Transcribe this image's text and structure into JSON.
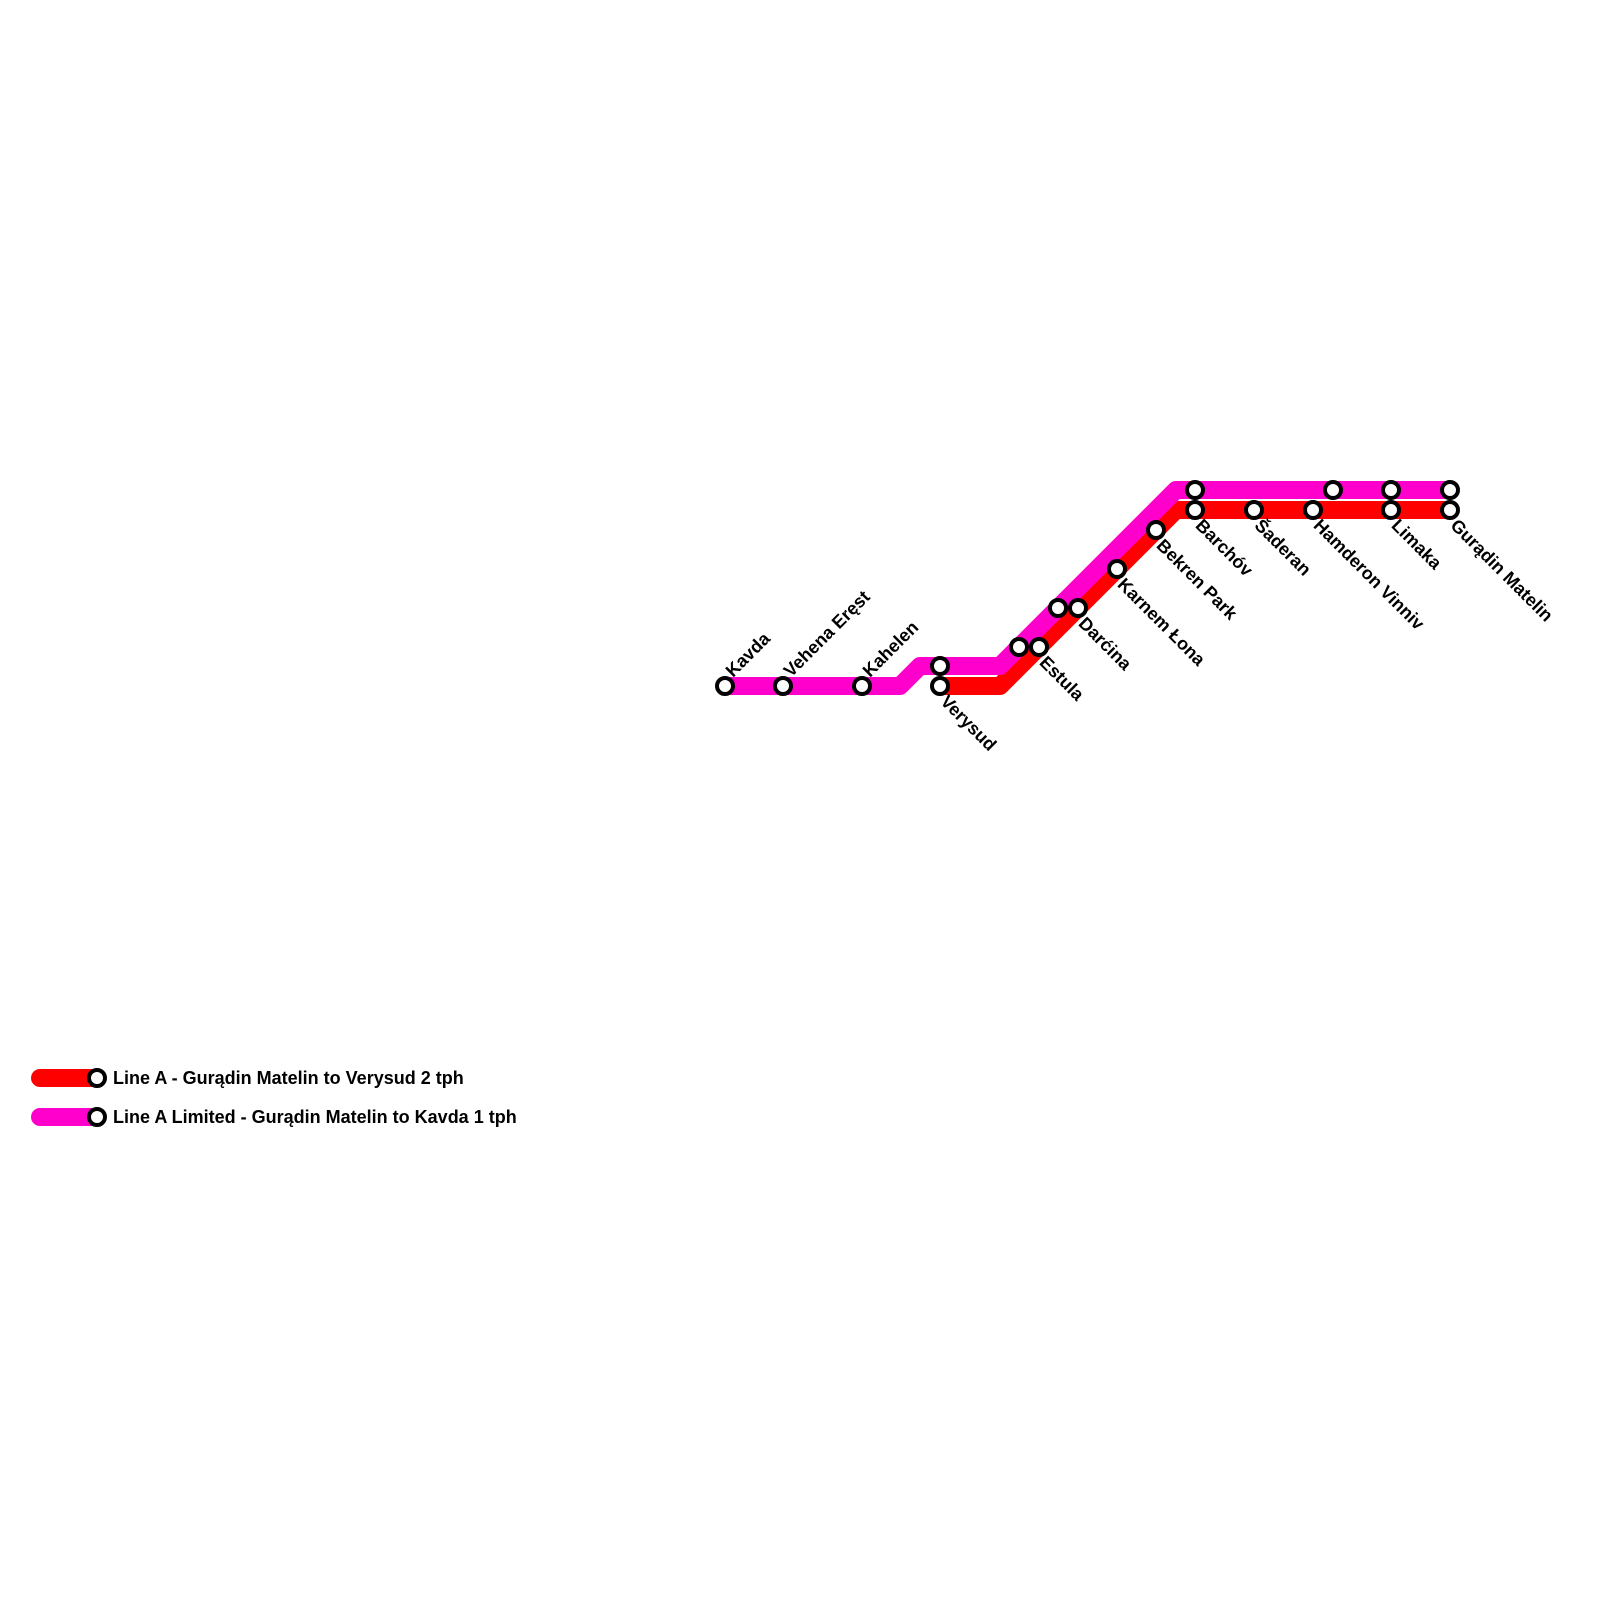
{
  "stations": [
    {
      "label": "Kavda"
    },
    {
      "label": "Vehena Eręst"
    },
    {
      "label": "Kahelen"
    },
    {
      "label": "Verysud"
    },
    {
      "label": "Estula"
    },
    {
      "label": "Darćina"
    },
    {
      "label": "Karnem Łona"
    },
    {
      "label": "Bekren Park"
    },
    {
      "label": "Barchóv"
    },
    {
      "label": "Šaderan"
    },
    {
      "label": "Hamderon Vinniv"
    },
    {
      "label": "Limaka"
    },
    {
      "label": "Gurądin Matelin"
    }
  ],
  "legend": [
    {
      "label": "Line A - Gurądin Matelin to Verysud 2 tph"
    },
    {
      "label": "Line A Limited - Gurądin Matelin to Kavda 1 tph"
    }
  ]
}
